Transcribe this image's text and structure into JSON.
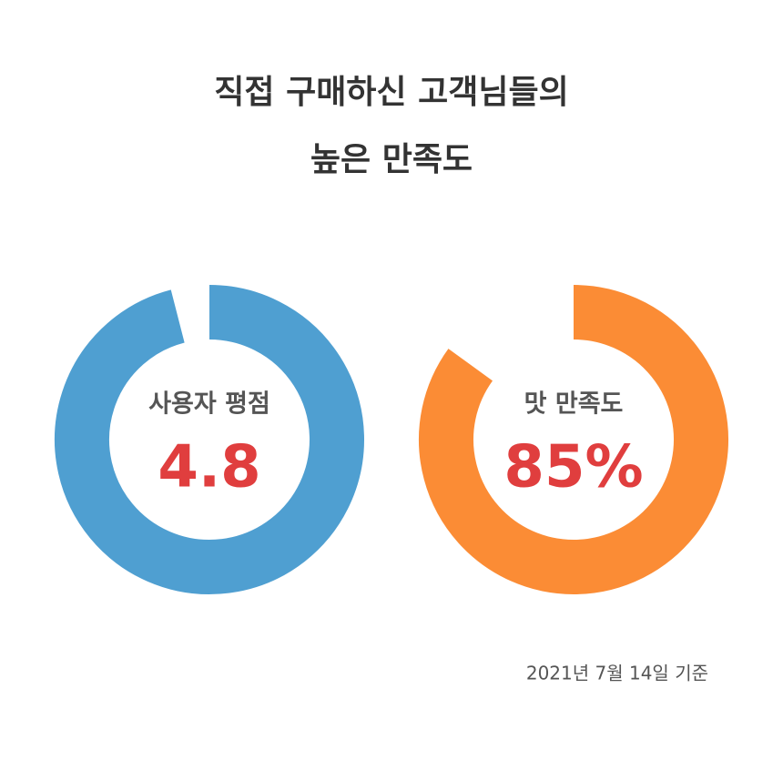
{
  "title": [
    "직접 구매하신 고객님들의",
    "높은 만족도"
  ],
  "chart_data": [
    {
      "type": "donut",
      "label": "사용자 평점",
      "value": 4.8,
      "ylim": [
        0,
        5
      ],
      "color": "#4f9fd1"
    },
    {
      "type": "donut",
      "label": "맛 만족도",
      "value": 85,
      "value_label": "85%",
      "ylim": [
        0,
        100
      ],
      "color": "#fb8c35"
    }
  ],
  "note": "2021년 7월 14일 기준"
}
